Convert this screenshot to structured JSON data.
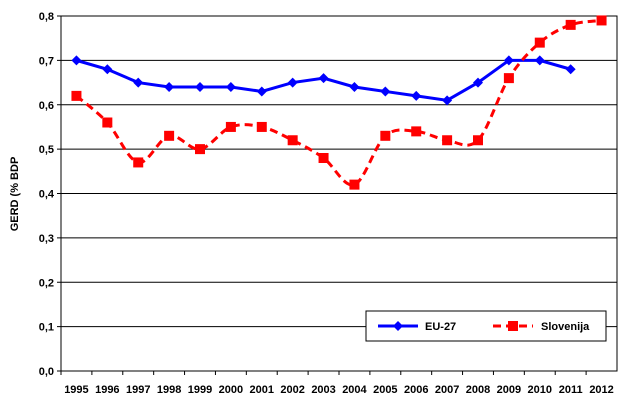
{
  "chart_data": {
    "type": "line",
    "ylabel": "GERD (% BDP",
    "ylim": [
      0,
      0.8
    ],
    "y_step": 0.1,
    "y_tick_labels": [
      "0,0",
      "0,1",
      "0,2",
      "0,3",
      "0,4",
      "0,5",
      "0,6",
      "0,7",
      "0,8"
    ],
    "grid": "horizontal",
    "legend_placement": "bottom-right",
    "x": [
      "1995",
      "1996",
      "1997",
      "1998",
      "1999",
      "2000",
      "2001",
      "2002",
      "2003",
      "2004",
      "2005",
      "2006",
      "2007",
      "2008",
      "2009",
      "2010",
      "2011",
      "2012"
    ],
    "series": [
      {
        "name": "EU-27",
        "color": "#0000ff",
        "line_style": "solid",
        "marker": "diamond",
        "values": [
          0.7,
          0.68,
          0.65,
          0.64,
          0.64,
          0.64,
          0.63,
          0.65,
          0.66,
          0.64,
          0.63,
          0.62,
          0.61,
          0.65,
          0.7,
          0.7,
          0.68,
          null
        ]
      },
      {
        "name": "Slovenija",
        "color": "#ff0000",
        "line_style": "dashed",
        "marker": "square",
        "values": [
          0.62,
          0.56,
          0.47,
          0.53,
          0.5,
          0.55,
          0.55,
          0.52,
          0.48,
          0.42,
          0.53,
          0.54,
          0.52,
          0.52,
          0.66,
          0.74,
          0.78,
          0.79
        ]
      }
    ]
  }
}
